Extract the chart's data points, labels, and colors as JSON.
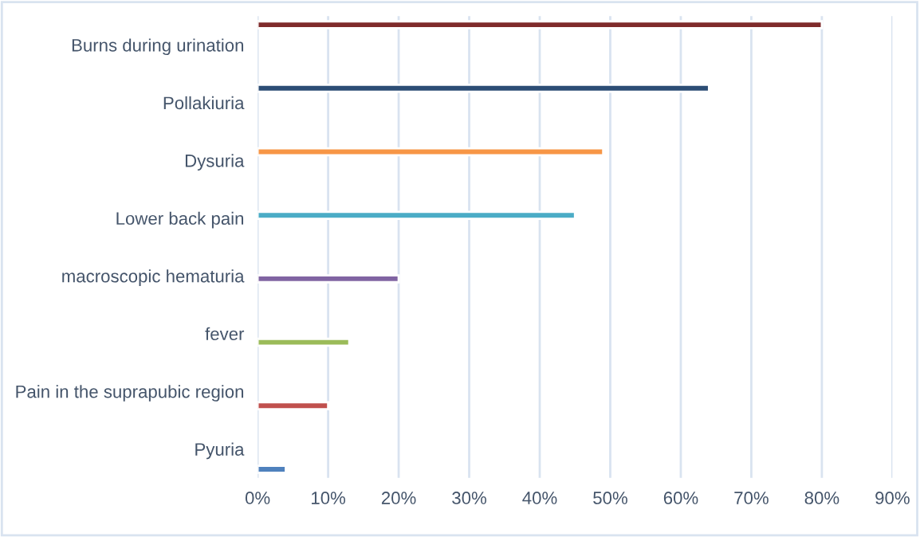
{
  "chart_data": {
    "type": "bar",
    "orientation": "horizontal",
    "categories": [
      "Burns during urination",
      "Pollakiuria",
      "Dysuria",
      "Lower back pain",
      "macroscopic hematuria",
      "fever",
      "Pain in the suprapubic region",
      "Pyuria"
    ],
    "values": [
      80,
      64,
      49,
      45,
      20,
      13,
      10,
      4
    ],
    "colors": [
      "#7f2b2b",
      "#2c4d75",
      "#f79646",
      "#4bacc6",
      "#8064a2",
      "#9bbb59",
      "#c0504d",
      "#4f81bd"
    ],
    "xlim": [
      0,
      90
    ],
    "xticks": [
      {
        "value": 0,
        "label": "0%"
      },
      {
        "value": 10,
        "label": "10%"
      },
      {
        "value": 20,
        "label": "20%"
      },
      {
        "value": 30,
        "label": "30%"
      },
      {
        "value": 40,
        "label": "40%"
      },
      {
        "value": 50,
        "label": "50%"
      },
      {
        "value": 60,
        "label": "60%"
      },
      {
        "value": 70,
        "label": "70%"
      },
      {
        "value": 80,
        "label": "80%"
      },
      {
        "value": 90,
        "label": "90%"
      }
    ],
    "grid": "x",
    "legend": false
  }
}
